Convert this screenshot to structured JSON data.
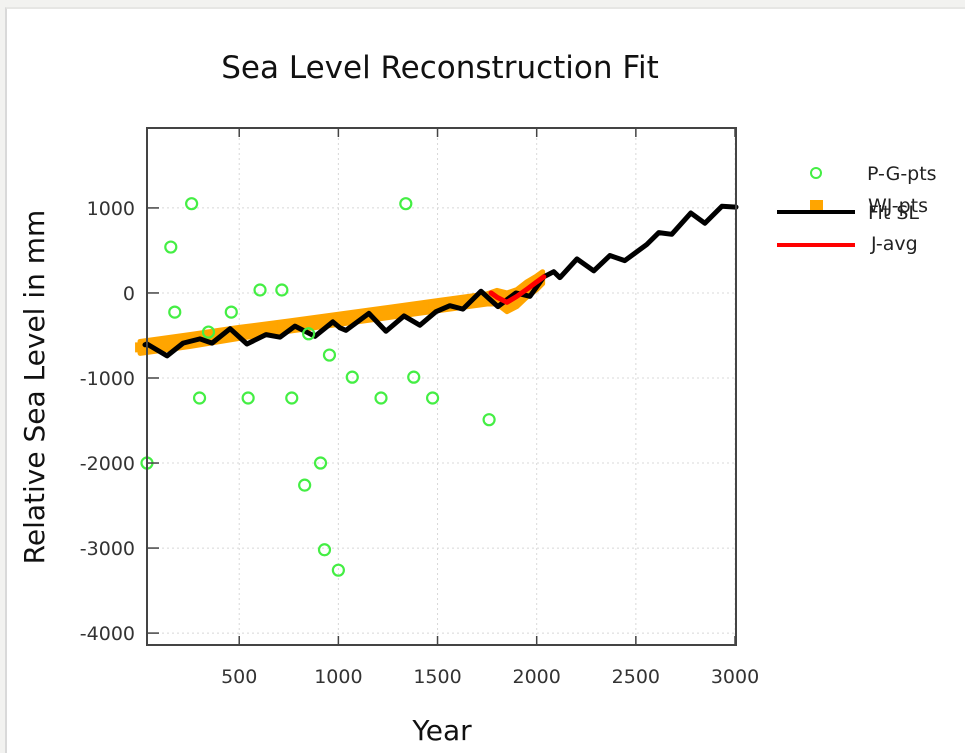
{
  "chart_data": {
    "type": "scatter",
    "title": "Sea Level Reconstruction Fit",
    "xlabel": "Year",
    "ylabel": "Relative Sea Level in mm",
    "xlim": [
      35,
      3005
    ],
    "ylim": [
      -4140,
      1940
    ],
    "xticks": [
      500,
      1000,
      1500,
      2000,
      2500,
      3000
    ],
    "xtick_labels": [
      "500",
      "1000",
      "1500",
      "2000",
      "2500",
      "3000"
    ],
    "yticks": [
      1000,
      0,
      -1000,
      -2000,
      -3000,
      -4000
    ],
    "ytick_labels": [
      "1000",
      "0",
      "-1000",
      "-2000",
      "-3000",
      "-4000"
    ],
    "grid": true,
    "legend_position": "outside-right-top",
    "series": [
      {
        "name": "P-G-pts",
        "kind": "scatter-open-circle",
        "color": "#44ee44",
        "points": [
          [
            35,
            -2000
          ],
          [
            155,
            540
          ],
          [
            175,
            -225
          ],
          [
            260,
            1050
          ],
          [
            300,
            -1235
          ],
          [
            345,
            -460
          ],
          [
            460,
            -225
          ],
          [
            545,
            -1235
          ],
          [
            605,
            35
          ],
          [
            715,
            35
          ],
          [
            765,
            -1235
          ],
          [
            830,
            -2260
          ],
          [
            850,
            -480
          ],
          [
            910,
            -2000
          ],
          [
            930,
            -3020
          ],
          [
            955,
            -730
          ],
          [
            1000,
            -3260
          ],
          [
            1070,
            -990
          ],
          [
            1215,
            -1235
          ],
          [
            1340,
            1050
          ],
          [
            1380,
            -990
          ],
          [
            1475,
            -1235
          ],
          [
            1760,
            -1490
          ]
        ]
      },
      {
        "name": "WJ-pts",
        "kind": "band-squares",
        "color": "#ffa500",
        "center": [
          [
            0,
            -640
          ],
          [
            250,
            -560
          ],
          [
            500,
            -470
          ],
          [
            750,
            -390
          ],
          [
            1000,
            -310
          ],
          [
            1250,
            -230
          ],
          [
            1500,
            -150
          ],
          [
            1750,
            -70
          ],
          [
            1800,
            -50
          ],
          [
            1850,
            -110
          ],
          [
            1900,
            -60
          ],
          [
            1950,
            40
          ],
          [
            2000,
            120
          ],
          [
            2030,
            180
          ]
        ],
        "halfwidth": [
          70,
          70,
          65,
          60,
          60,
          60,
          60,
          60,
          80,
          110,
          100,
          90,
          80,
          70
        ]
      },
      {
        "name": "Fit SL",
        "kind": "line",
        "color": "#000000",
        "points": [
          [
            0,
            -610
          ],
          [
            35,
            -600
          ],
          [
            136,
            -740
          ],
          [
            217,
            -590
          ],
          [
            302,
            -540
          ],
          [
            363,
            -590
          ],
          [
            454,
            -420
          ],
          [
            539,
            -600
          ],
          [
            635,
            -490
          ],
          [
            706,
            -520
          ],
          [
            781,
            -390
          ],
          [
            882,
            -510
          ],
          [
            972,
            -340
          ],
          [
            1008,
            -410
          ],
          [
            1038,
            -440
          ],
          [
            1154,
            -240
          ],
          [
            1240,
            -450
          ],
          [
            1331,
            -270
          ],
          [
            1411,
            -380
          ],
          [
            1492,
            -220
          ],
          [
            1562,
            -150
          ],
          [
            1628,
            -190
          ],
          [
            1719,
            20
          ],
          [
            1804,
            -160
          ],
          [
            1895,
            0
          ],
          [
            1966,
            -40
          ],
          [
            2036,
            190
          ],
          [
            2086,
            250
          ],
          [
            2117,
            180
          ],
          [
            2203,
            400
          ],
          [
            2288,
            260
          ],
          [
            2369,
            440
          ],
          [
            2444,
            380
          ],
          [
            2555,
            570
          ],
          [
            2616,
            710
          ],
          [
            2681,
            690
          ],
          [
            2777,
            940
          ],
          [
            2848,
            820
          ],
          [
            2934,
            1020
          ],
          [
            3030,
            1010
          ]
        ]
      },
      {
        "name": "J-avg",
        "kind": "line",
        "color": "#ff0000",
        "points": [
          [
            1770,
            0
          ],
          [
            1800,
            -50
          ],
          [
            1850,
            -110
          ],
          [
            1900,
            -40
          ],
          [
            1960,
            60
          ],
          [
            2000,
            130
          ],
          [
            2036,
            190
          ]
        ]
      }
    ]
  }
}
